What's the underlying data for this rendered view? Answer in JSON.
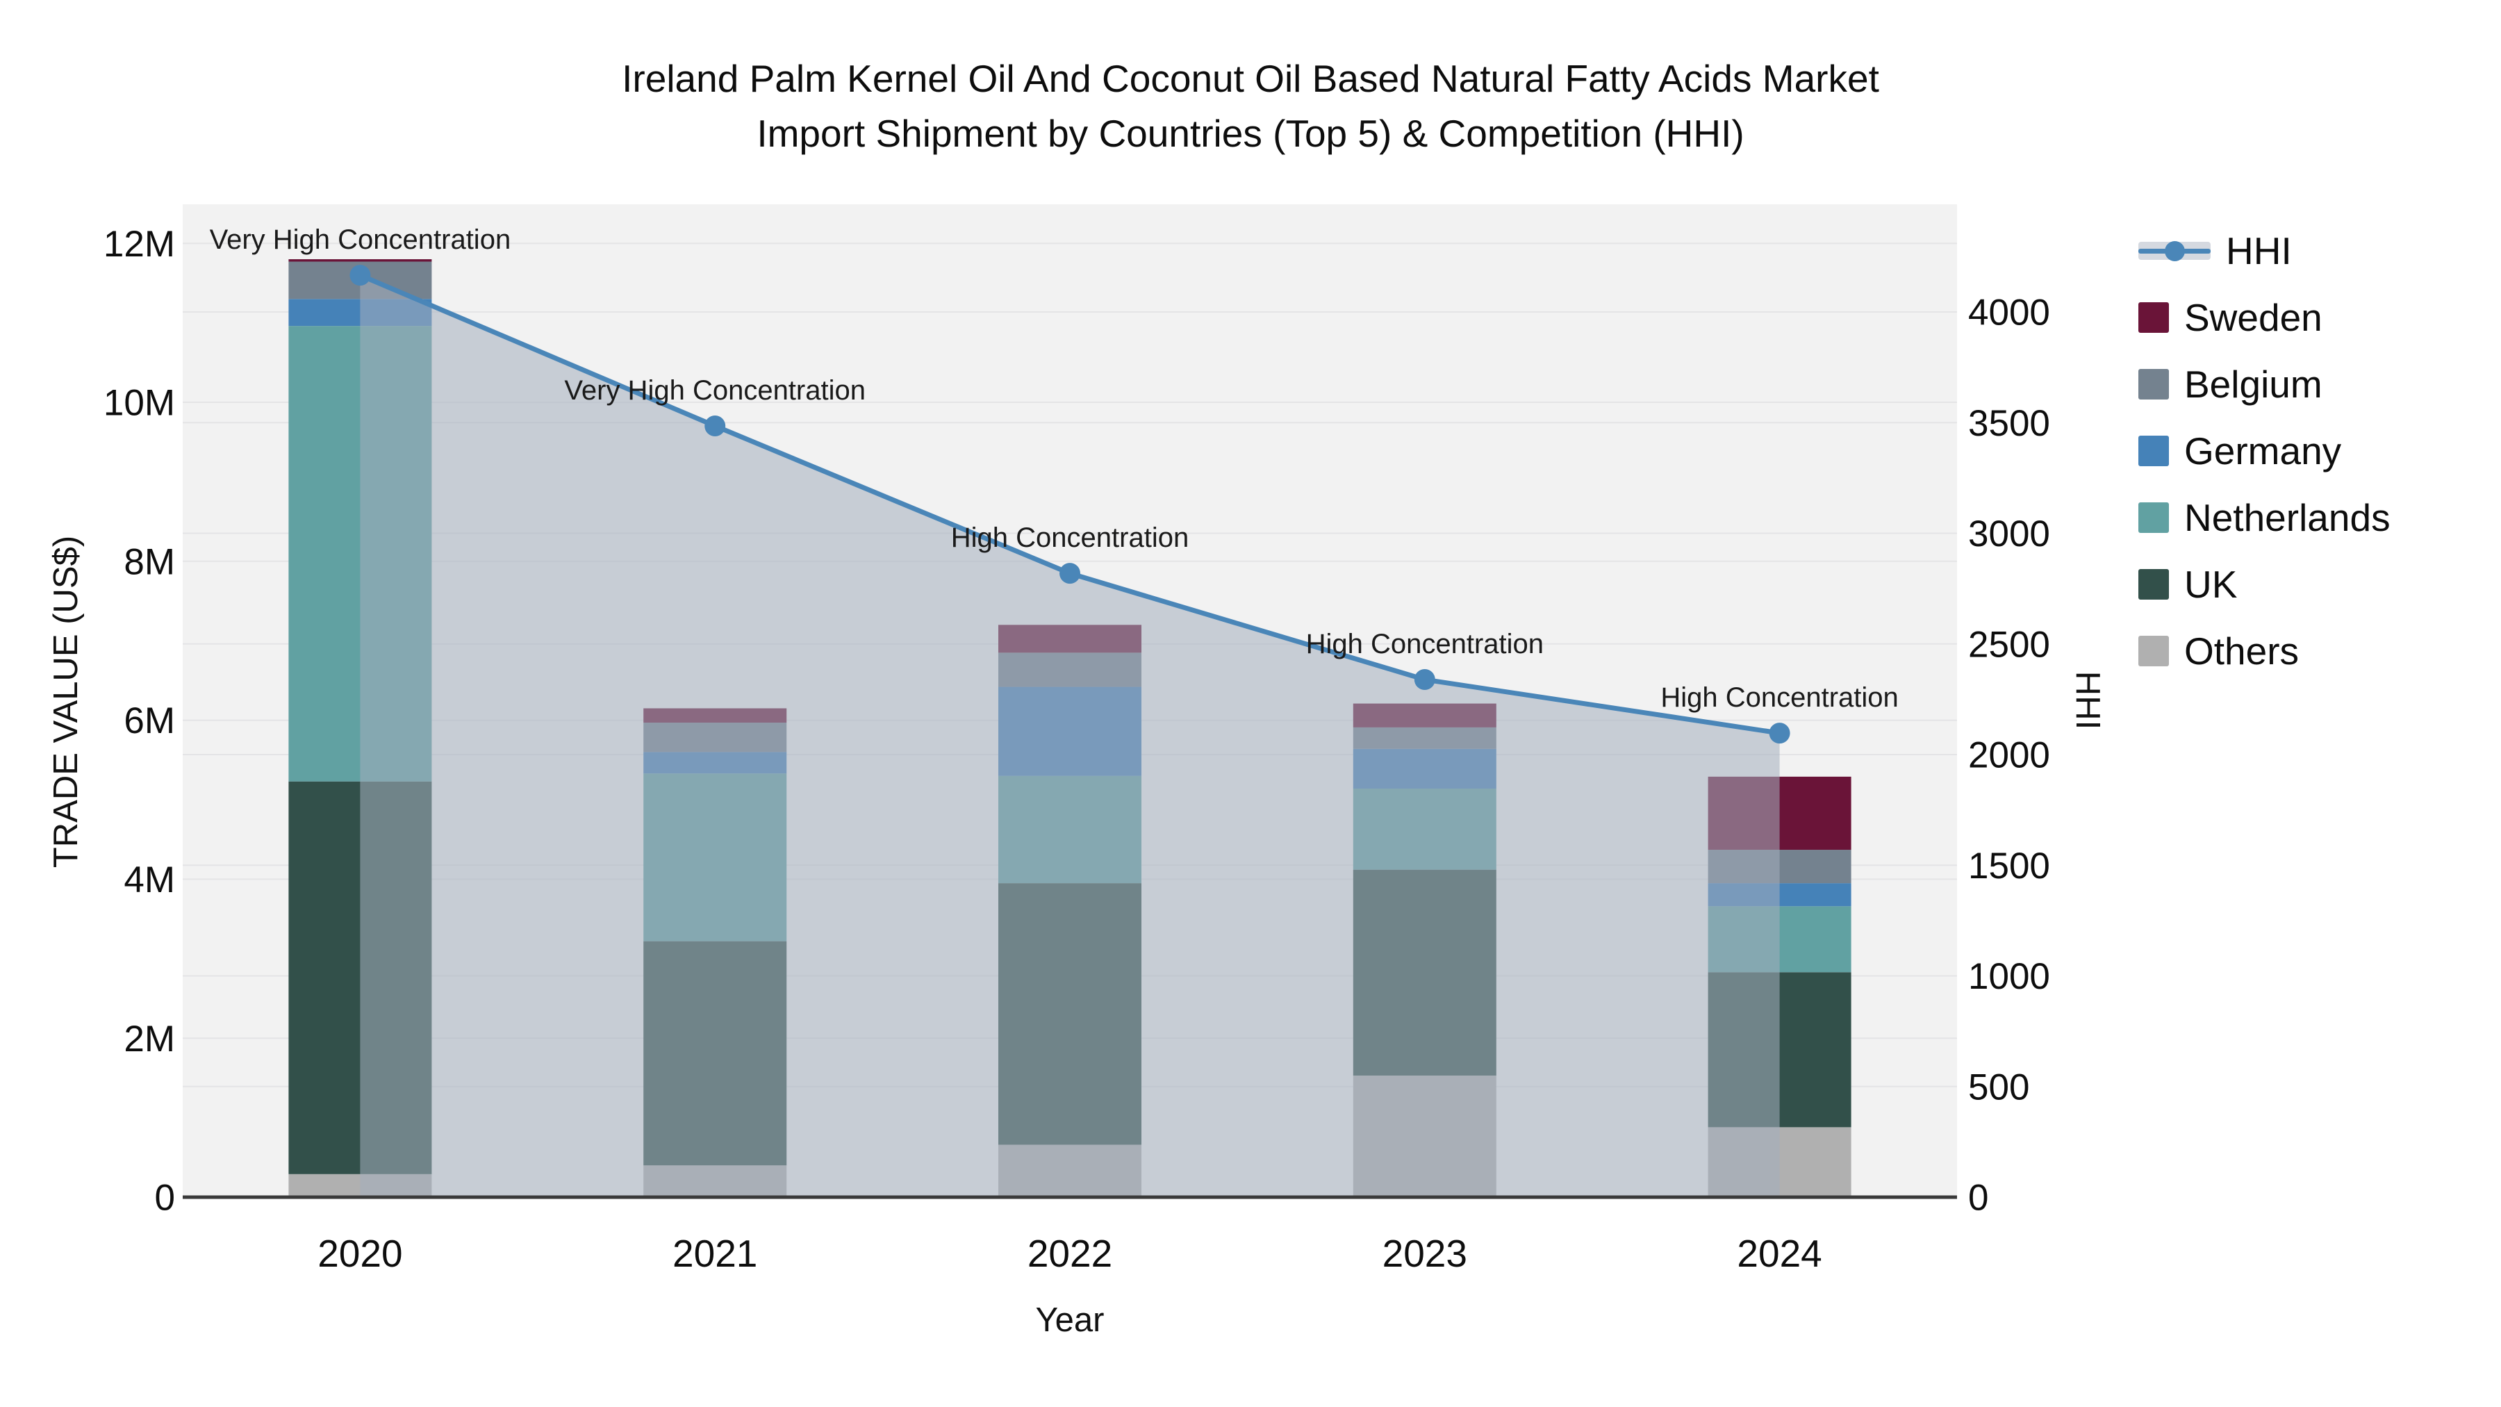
{
  "title": {
    "line1": "Ireland Palm Kernel Oil And Coconut Oil Based Natural Fatty Acids Market",
    "line2": "Import Shipment by Countries (Top 5) & Competition (HHI)"
  },
  "axes": {
    "x": {
      "title": "Year",
      "tick_labels": [
        "2020",
        "2021",
        "2022",
        "2023",
        "2024"
      ]
    },
    "y_left": {
      "title": "TRADE VALUE (US$)",
      "ticks": [
        {
          "label": "0",
          "value": 0
        },
        {
          "label": "2M",
          "value": 2
        },
        {
          "label": "4M",
          "value": 4
        },
        {
          "label": "6M",
          "value": 6
        },
        {
          "label": "8M",
          "value": 8
        },
        {
          "label": "10M",
          "value": 10
        },
        {
          "label": "12M",
          "value": 12
        }
      ]
    },
    "y_right": {
      "title": "HHI",
      "ticks": [
        {
          "label": "0",
          "value": 0
        },
        {
          "label": "500",
          "value": 500
        },
        {
          "label": "1000",
          "value": 1000
        },
        {
          "label": "1500",
          "value": 1500
        },
        {
          "label": "2000",
          "value": 2000
        },
        {
          "label": "2500",
          "value": 2500
        },
        {
          "label": "3000",
          "value": 3000
        },
        {
          "label": "3500",
          "value": 3500
        },
        {
          "label": "4000",
          "value": 4000
        }
      ]
    }
  },
  "legend": {
    "items": [
      {
        "label": "HHI",
        "type": "line",
        "color": "#4a86b8"
      },
      {
        "label": "Sweden",
        "type": "box",
        "color": "#6a1438"
      },
      {
        "label": "Belgium",
        "type": "box",
        "color": "#74828f"
      },
      {
        "label": "Germany",
        "type": "box",
        "color": "#4582b8"
      },
      {
        "label": "Netherlands",
        "type": "box",
        "color": "#61a1a2"
      },
      {
        "label": "UK",
        "type": "box",
        "color": "#32504a"
      },
      {
        "label": "Others",
        "type": "box",
        "color": "#b0b0b0"
      }
    ]
  },
  "colors": {
    "plot_bg": "#f2f2f2",
    "grid": "#e4e4e6",
    "axis_line": "#3a3a3a",
    "hhi_line": "#4a86b8",
    "hhi_area": "rgba(164,174,189,0.55)",
    "annotation_text": "#1a1a1a"
  },
  "chart_data": {
    "type": "bar+line",
    "subtype": "stacked-bar with secondary-axis line and area fill",
    "categories": [
      "2020",
      "2021",
      "2022",
      "2023",
      "2024"
    ],
    "bar_unit": "million US$",
    "bar_series_bottom_to_top": [
      {
        "name": "Others",
        "color": "#b0b0b0",
        "values": [
          0.29,
          0.4,
          0.66,
          1.53,
          0.88
        ]
      },
      {
        "name": "UK",
        "color": "#32504a",
        "values": [
          4.94,
          2.82,
          3.29,
          2.59,
          1.95
        ]
      },
      {
        "name": "Netherlands",
        "color": "#61a1a2",
        "values": [
          5.73,
          2.11,
          1.35,
          1.02,
          0.83
        ]
      },
      {
        "name": "Germany",
        "color": "#4582b8",
        "values": [
          0.34,
          0.27,
          1.12,
          0.5,
          0.29
        ]
      },
      {
        "name": "Belgium",
        "color": "#74828f",
        "values": [
          0.47,
          0.37,
          0.43,
          0.27,
          0.42
        ]
      },
      {
        "name": "Sweden",
        "color": "#6a1438",
        "values": [
          0.03,
          0.18,
          0.35,
          0.3,
          0.92
        ]
      }
    ],
    "bar_totals": [
      11.8,
      6.15,
      7.2,
      6.21,
      5.29
    ],
    "line_series": {
      "name": "HHI",
      "axis": "right",
      "values": [
        4166,
        3485,
        2819,
        2339,
        2097
      ],
      "area_fill": true
    },
    "annotations": [
      {
        "category": "2020",
        "label": "Very High Concentration"
      },
      {
        "category": "2021",
        "label": "Very High Concentration"
      },
      {
        "category": "2022",
        "label": "High Concentration"
      },
      {
        "category": "2023",
        "label": "High Concentration"
      },
      {
        "category": "2024",
        "label": "High Concentration"
      }
    ],
    "xlabel": "Year",
    "ylabel_left": "TRADE VALUE (US$)",
    "ylabel_right": "HHI",
    "ylim_left_m": [
      0,
      12.49
    ],
    "ylim_right": [
      0,
      4487
    ],
    "grid": true,
    "legend_position": "right"
  }
}
